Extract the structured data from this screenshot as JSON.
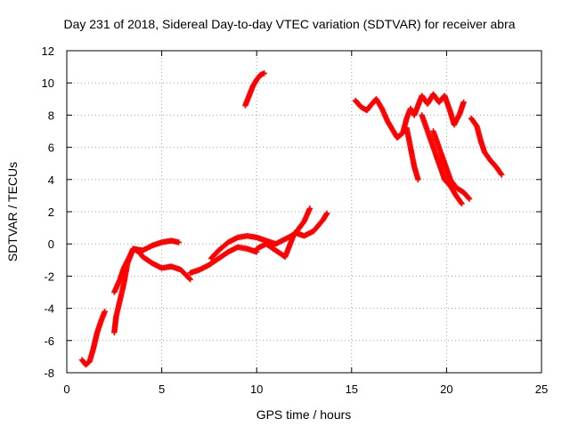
{
  "chart_data": {
    "type": "scatter",
    "title": "Day 231 of 2018, Sidereal Day-to-day VTEC variation (SDTVAR) for receiver abra",
    "xlabel": "GPS time / hours",
    "ylabel": "SDTVAR / TECUs",
    "xlim": [
      0,
      25
    ],
    "ylim": [
      -8,
      12
    ],
    "xticks": [
      "0",
      "5",
      "10",
      "15",
      "20",
      "25"
    ],
    "yticks": [
      "-8",
      "-6",
      "-4",
      "-2",
      "0",
      "2",
      "4",
      "6",
      "8",
      "10",
      "12"
    ],
    "grid": true,
    "marker": "+",
    "colors": {
      "series": "#ff0000",
      "axis": "#000000",
      "grid": "#a0a0a0"
    },
    "series": [
      {
        "name": "segment-1",
        "points": [
          [
            0.8,
            -7.2
          ],
          [
            1.0,
            -7.5
          ],
          [
            1.2,
            -7.3
          ],
          [
            1.4,
            -6.5
          ],
          [
            1.6,
            -5.5
          ],
          [
            1.8,
            -4.8
          ],
          [
            2.0,
            -4.2
          ]
        ]
      },
      {
        "name": "segment-2",
        "points": [
          [
            2.5,
            -5.5
          ],
          [
            2.6,
            -4.5
          ],
          [
            2.8,
            -3.5
          ],
          [
            3.0,
            -2.5
          ],
          [
            3.2,
            -1.2
          ],
          [
            3.5,
            -0.3
          ],
          [
            3.8,
            -0.5
          ],
          [
            4.0,
            -0.8
          ],
          [
            4.5,
            -1.2
          ],
          [
            5.0,
            -1.5
          ],
          [
            5.5,
            -1.4
          ],
          [
            6.0,
            -1.6
          ],
          [
            6.5,
            -2.2
          ]
        ]
      },
      {
        "name": "segment-3",
        "points": [
          [
            2.5,
            -3.0
          ],
          [
            2.8,
            -2.2
          ],
          [
            3.0,
            -1.5
          ],
          [
            3.3,
            -0.8
          ],
          [
            3.5,
            -0.3
          ],
          [
            4.0,
            -0.4
          ],
          [
            4.5,
            -0.1
          ],
          [
            5.0,
            0.1
          ],
          [
            5.5,
            0.2
          ],
          [
            5.9,
            0.1
          ]
        ]
      },
      {
        "name": "segment-4",
        "points": [
          [
            6.5,
            -1.8
          ],
          [
            7.0,
            -1.6
          ],
          [
            7.5,
            -1.3
          ],
          [
            8.0,
            -0.9
          ],
          [
            8.5,
            -0.5
          ],
          [
            9.0,
            -0.2
          ],
          [
            9.5,
            -0.3
          ],
          [
            10.0,
            -0.5
          ]
        ]
      },
      {
        "name": "segment-5",
        "points": [
          [
            7.6,
            -0.9
          ],
          [
            8.0,
            -0.4
          ],
          [
            8.5,
            0.1
          ],
          [
            9.0,
            0.4
          ],
          [
            9.5,
            0.5
          ],
          [
            10.0,
            0.4
          ],
          [
            10.5,
            0.2
          ],
          [
            11.0,
            0.0
          ],
          [
            11.5,
            0.3
          ],
          [
            12.0,
            0.6
          ],
          [
            12.5,
            1.4
          ],
          [
            12.8,
            2.2
          ]
        ]
      },
      {
        "name": "segment-6",
        "points": [
          [
            10.0,
            -0.3
          ],
          [
            10.5,
            0.0
          ],
          [
            11.0,
            -0.4
          ],
          [
            11.5,
            -0.8
          ],
          [
            12.0,
            0.7
          ],
          [
            12.5,
            0.5
          ],
          [
            13.0,
            0.8
          ],
          [
            13.5,
            1.5
          ],
          [
            13.7,
            1.9
          ]
        ]
      },
      {
        "name": "segment-7",
        "points": [
          [
            9.4,
            8.6
          ],
          [
            9.6,
            9.2
          ],
          [
            9.8,
            9.8
          ],
          [
            10.0,
            10.2
          ],
          [
            10.2,
            10.5
          ],
          [
            10.4,
            10.6
          ]
        ]
      },
      {
        "name": "segment-8",
        "points": [
          [
            15.2,
            8.9
          ],
          [
            15.5,
            8.5
          ],
          [
            15.8,
            8.3
          ],
          [
            16.0,
            8.6
          ],
          [
            16.3,
            9.0
          ],
          [
            16.6,
            8.4
          ],
          [
            16.9,
            7.6
          ],
          [
            17.1,
            7.2
          ],
          [
            17.4,
            6.6
          ],
          [
            17.7,
            6.9
          ],
          [
            17.9,
            7.8
          ],
          [
            18.1,
            8.4
          ],
          [
            18.3,
            8.0
          ],
          [
            18.5,
            8.6
          ],
          [
            18.7,
            9.2
          ],
          [
            19.0,
            8.7
          ],
          [
            19.3,
            9.3
          ],
          [
            19.6,
            8.8
          ],
          [
            19.9,
            9.2
          ],
          [
            20.2,
            8.2
          ],
          [
            20.4,
            7.4
          ],
          [
            20.7,
            8.1
          ],
          [
            20.9,
            8.8
          ]
        ]
      },
      {
        "name": "segment-9",
        "points": [
          [
            17.9,
            7.2
          ],
          [
            18.1,
            6.0
          ],
          [
            18.3,
            4.8
          ],
          [
            18.5,
            4.0
          ]
        ]
      },
      {
        "name": "segment-10",
        "points": [
          [
            18.7,
            8.0
          ],
          [
            19.0,
            7.0
          ],
          [
            19.3,
            6.0
          ],
          [
            19.6,
            5.0
          ],
          [
            19.9,
            4.0
          ],
          [
            20.2,
            3.6
          ],
          [
            20.5,
            3.0
          ],
          [
            20.8,
            2.5
          ]
        ]
      },
      {
        "name": "segment-11",
        "points": [
          [
            19.3,
            7.0
          ],
          [
            19.6,
            6.0
          ],
          [
            19.9,
            5.0
          ],
          [
            20.2,
            4.0
          ],
          [
            20.5,
            3.5
          ],
          [
            20.9,
            3.2
          ],
          [
            21.2,
            2.8
          ]
        ]
      },
      {
        "name": "segment-12",
        "points": [
          [
            21.3,
            7.8
          ],
          [
            21.6,
            7.3
          ],
          [
            21.8,
            6.4
          ],
          [
            22.0,
            5.7
          ],
          [
            22.3,
            5.2
          ],
          [
            22.6,
            4.8
          ],
          [
            22.9,
            4.3
          ]
        ]
      }
    ]
  }
}
